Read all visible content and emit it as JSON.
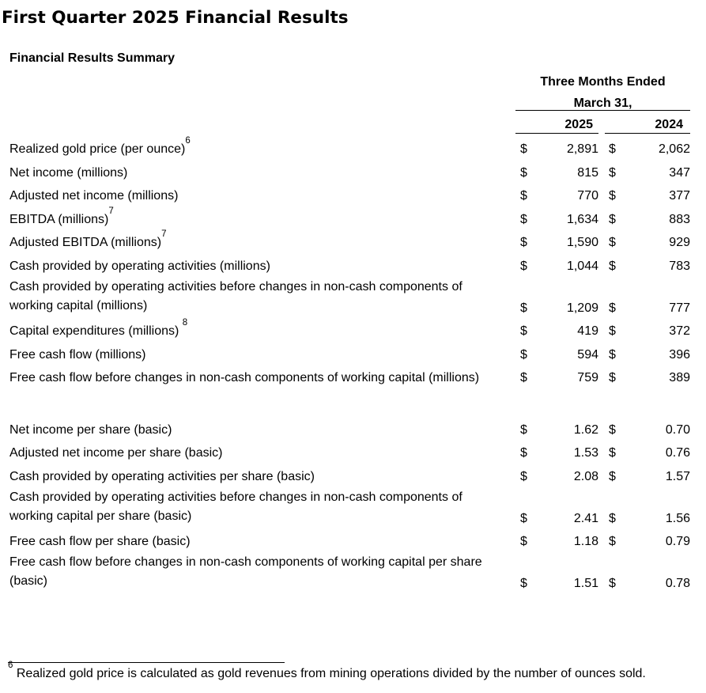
{
  "page": {
    "title": "First Quarter 2025 Financial Results",
    "section_title": "Financial Results Summary"
  },
  "table": {
    "currency": "$",
    "header": {
      "period_line1": "Three Months Ended",
      "period_line2": "March 31,",
      "col1": "2025",
      "col2": "2024"
    },
    "rows": [
      {
        "label": "Realized gold price (per ounce)",
        "sup": "6",
        "v2025": "2,891",
        "v2024": "2,062"
      },
      {
        "label": "Net income (millions)",
        "v2025": "815",
        "v2024": "347"
      },
      {
        "label": "Adjusted net income (millions)",
        "v2025": "770",
        "v2024": "377"
      },
      {
        "label": "EBITDA (millions)",
        "sup": "7",
        "v2025": "1,634",
        "v2024": "883"
      },
      {
        "label": "Adjusted EBITDA (millions)",
        "sup": "7",
        "v2025": "1,590",
        "v2024": "929"
      },
      {
        "label": "Cash provided by operating activities (millions)",
        "v2025": "1,044",
        "v2024": "783"
      },
      {
        "line1": "Cash provided by operating activities before changes in non-cash components of",
        "line2": "working capital (millions)",
        "v2025": "1,209",
        "v2024": "777"
      },
      {
        "label": "Capital expenditures (millions) ",
        "sup": "8",
        "v2025": "419",
        "v2024": "372"
      },
      {
        "label": "Free cash flow (millions)",
        "v2025": "594",
        "v2024": "396"
      },
      {
        "label": "Free cash flow before changes in non-cash components of working capital (millions)",
        "v2025": "759",
        "v2024": "389"
      },
      {
        "label": "Net income per share (basic)",
        "v2025": "1.62",
        "v2024": "0.70"
      },
      {
        "label": "Adjusted net income per share (basic)",
        "v2025": "1.53",
        "v2024": "0.76"
      },
      {
        "label": "Cash provided by operating activities per share (basic)",
        "v2025": "2.08",
        "v2024": "1.57"
      },
      {
        "line1": "Cash provided by operating activities before changes in non-cash components of",
        "line2": "working capital per share (basic)",
        "v2025": "2.41",
        "v2024": "1.56"
      },
      {
        "label": "Free cash flow per share (basic)",
        "v2025": "1.18",
        "v2024": "0.79"
      },
      {
        "line1": "Free cash flow before changes in non-cash components of working capital per share",
        "line2": "(basic)",
        "v2025": "1.51",
        "v2024": "0.78"
      }
    ]
  },
  "footnote": {
    "marker": "6",
    "text": "Realized gold price is calculated as gold revenues from mining operations divided by the number of ounces sold."
  }
}
